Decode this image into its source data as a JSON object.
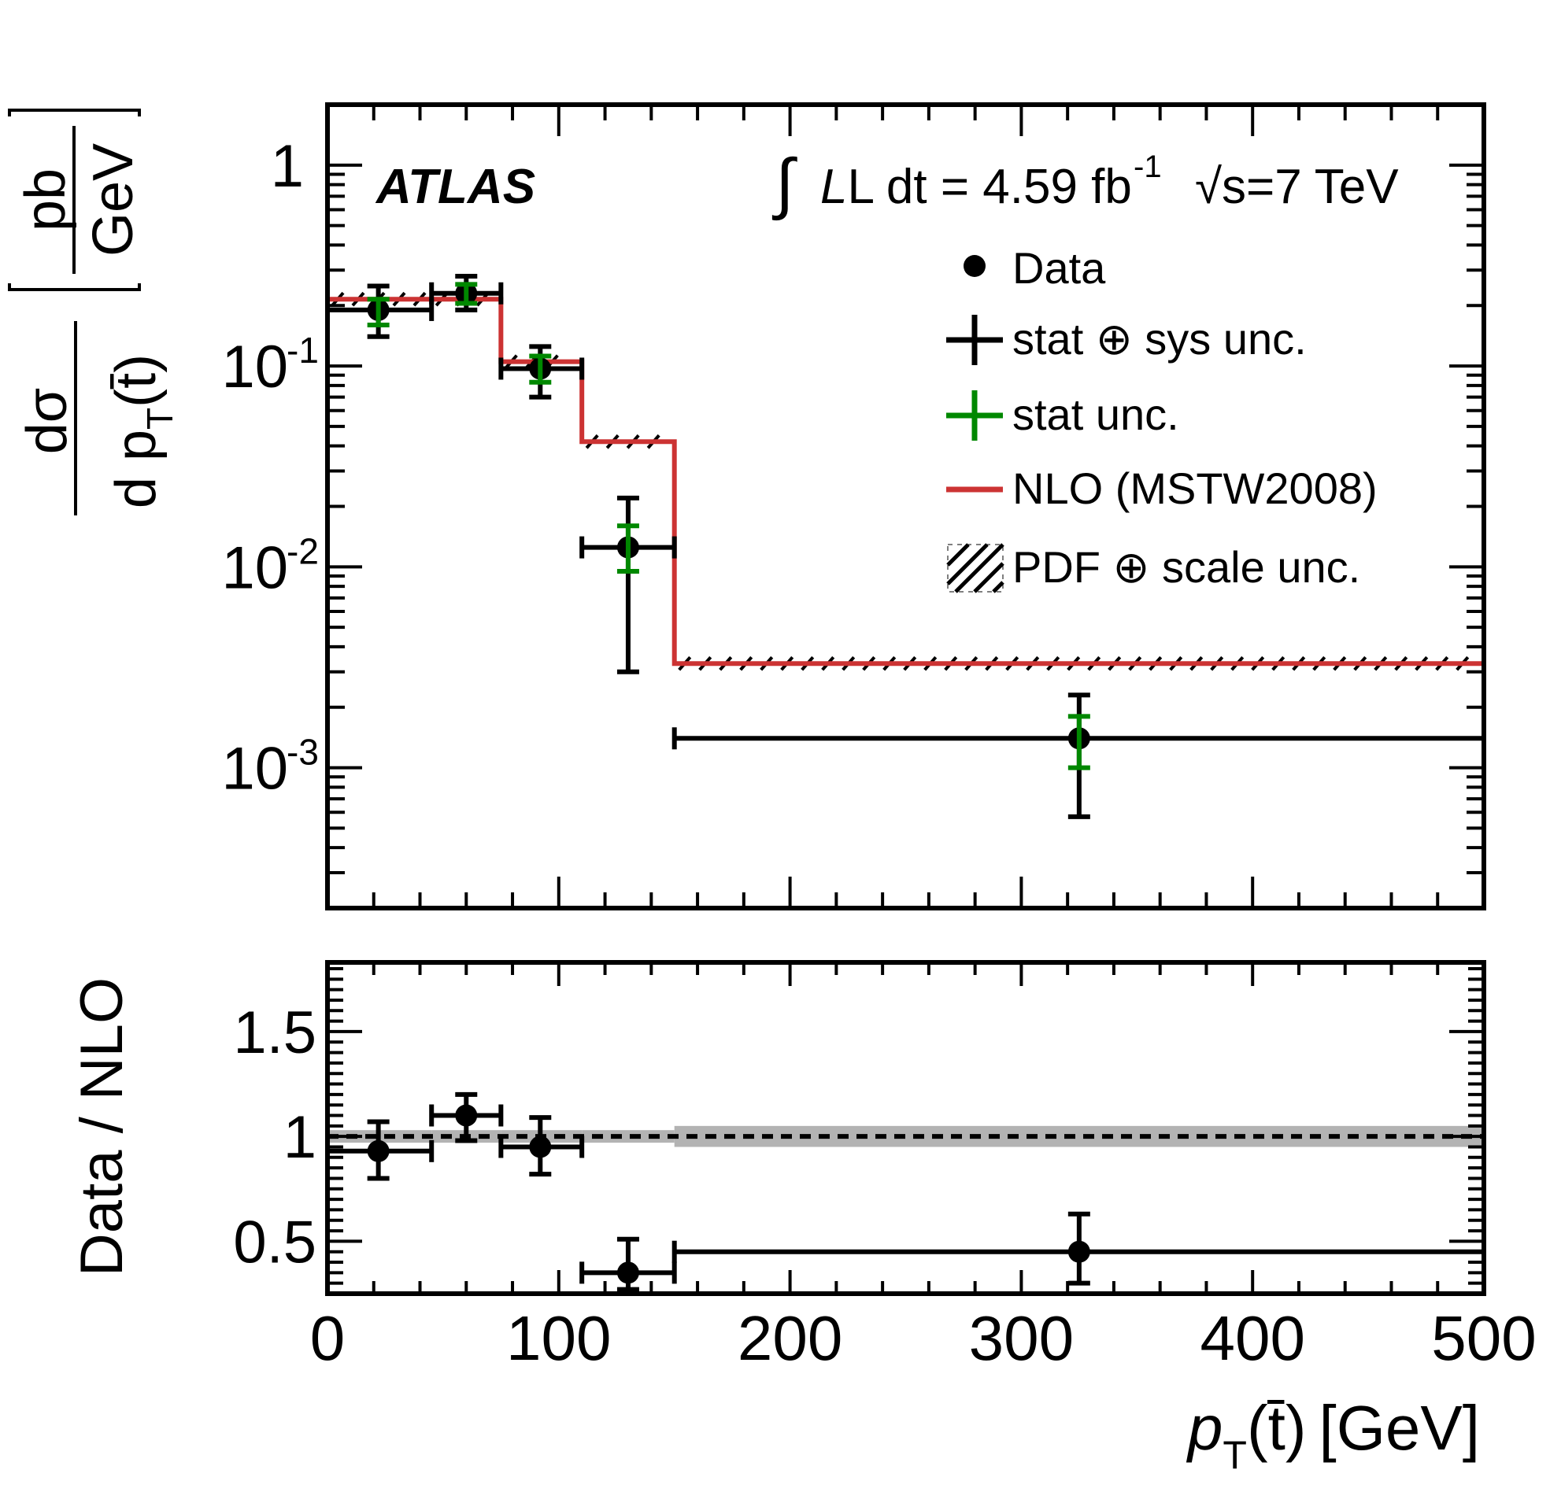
{
  "chart_data": [
    {
      "panel": "main",
      "type": "line",
      "experiment_label": "ATLAS",
      "lumi_label": "L dt = 4.59 fb",
      "lumi_exp": "-1",
      "energy_label": "s=7 TeV",
      "ylabel_numerator": "dσ",
      "ylabel_denominator": "d p",
      "ylabel_sub": "T",
      "ylabel_arg": "(t̄)",
      "ylabel_unit_num": "pb",
      "ylabel_unit_den": "GeV",
      "yscale": "log",
      "ylim": [
        0.0002,
        2
      ],
      "xlim": [
        0,
        500
      ],
      "ytick_labels": [
        {
          "value": 1,
          "base": "1",
          "exp": ""
        },
        {
          "value": 0.1,
          "base": "10",
          "exp": "-1"
        },
        {
          "value": 0.01,
          "base": "10",
          "exp": "-2"
        },
        {
          "value": 0.001,
          "base": "10",
          "exp": "-3"
        }
      ],
      "bins": [
        [
          0,
          45
        ],
        [
          45,
          75
        ],
        [
          75,
          110
        ],
        [
          110,
          150
        ],
        [
          150,
          500
        ]
      ],
      "nlo_values": [
        0.215,
        0.215,
        0.105,
        0.042,
        0.0033
      ],
      "data": [
        {
          "x": 22,
          "y": 0.19,
          "xlo": 0,
          "xhi": 45,
          "tot_lo": 0.14,
          "tot_hi": 0.25,
          "stat_lo": 0.16,
          "stat_hi": 0.215
        },
        {
          "x": 60,
          "y": 0.23,
          "xlo": 45,
          "xhi": 75,
          "tot_lo": 0.19,
          "tot_hi": 0.28,
          "stat_lo": 0.205,
          "stat_hi": 0.255
        },
        {
          "x": 92,
          "y": 0.097,
          "xlo": 75,
          "xhi": 110,
          "tot_lo": 0.07,
          "tot_hi": 0.125,
          "stat_lo": 0.083,
          "stat_hi": 0.112
        },
        {
          "x": 130,
          "y": 0.0125,
          "xlo": 110,
          "xhi": 150,
          "tot_lo": 0.003,
          "tot_hi": 0.022,
          "stat_lo": 0.0095,
          "stat_hi": 0.016
        },
        {
          "x": 325,
          "y": 0.0014,
          "xlo": 150,
          "xhi": 500,
          "tot_lo": 0.00057,
          "tot_hi": 0.0023,
          "stat_lo": 0.001,
          "stat_hi": 0.0018
        }
      ],
      "legend": [
        {
          "key": "data",
          "label": "Data"
        },
        {
          "key": "tot",
          "label": "stat ⊕ sys unc."
        },
        {
          "key": "stat",
          "label": "stat unc."
        },
        {
          "key": "nlo",
          "label": "NLO (MSTW2008)"
        },
        {
          "key": "band",
          "label": "PDF ⊕ scale unc."
        }
      ],
      "colors": {
        "data": "#000000",
        "stat": "#008800",
        "nlo": "#cc3333",
        "band": "#000000"
      }
    },
    {
      "panel": "ratio",
      "type": "scatter",
      "ylabel": "Data / NLO",
      "xlabel_var": "p",
      "xlabel_sub": "T",
      "xlabel_arg": "(t̄)",
      "xlabel_unit": "[GeV]",
      "ylim": [
        0.25,
        1.83
      ],
      "xlim": [
        0,
        500
      ],
      "ytick_labels": [
        {
          "value": 1.5,
          "label": "1.5"
        },
        {
          "value": 1,
          "label": "1"
        },
        {
          "value": 0.5,
          "label": "0.5"
        }
      ],
      "xtick_labels": [
        "0",
        "100",
        "200",
        "300",
        "400",
        "500"
      ],
      "reference_line": 1.0,
      "band": [
        {
          "xlo": 0,
          "xhi": 45,
          "lo": 0.97,
          "hi": 1.03
        },
        {
          "xlo": 45,
          "xhi": 75,
          "lo": 0.97,
          "hi": 1.03
        },
        {
          "xlo": 75,
          "xhi": 110,
          "lo": 0.97,
          "hi": 1.03
        },
        {
          "xlo": 110,
          "xhi": 150,
          "lo": 0.97,
          "hi": 1.03
        },
        {
          "xlo": 150,
          "xhi": 500,
          "lo": 0.95,
          "hi": 1.05
        }
      ],
      "data": [
        {
          "x": 22,
          "y": 0.93,
          "xlo": 0,
          "xhi": 45,
          "lo": 0.8,
          "hi": 1.07
        },
        {
          "x": 60,
          "y": 1.1,
          "xlo": 45,
          "xhi": 75,
          "lo": 0.98,
          "hi": 1.2
        },
        {
          "x": 92,
          "y": 0.95,
          "xlo": 75,
          "xhi": 110,
          "lo": 0.82,
          "hi": 1.09
        },
        {
          "x": 130,
          "y": 0.35,
          "xlo": 110,
          "xhi": 150,
          "lo": 0.27,
          "hi": 0.51
        },
        {
          "x": 325,
          "y": 0.45,
          "xlo": 150,
          "xhi": 500,
          "lo": 0.3,
          "hi": 0.63
        }
      ],
      "colors": {
        "band": "#b3b3b3",
        "line": "#000000"
      }
    }
  ]
}
